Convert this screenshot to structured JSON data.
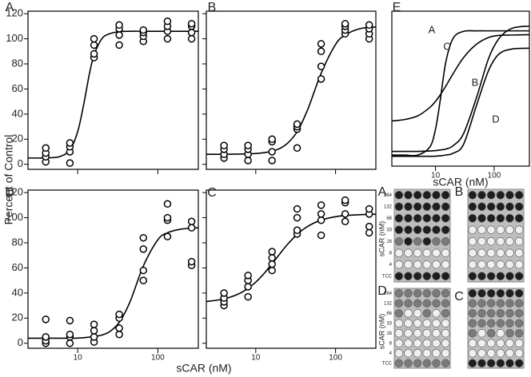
{
  "chart_data": [
    {
      "type": "scatter",
      "title": "A",
      "ylabel": "Percent of Control",
      "xscale": "log",
      "xlim": [
        2.4,
        320
      ],
      "ylim": [
        -4,
        122
      ],
      "xticks": [
        10,
        100
      ],
      "yticks": [
        0,
        20,
        40,
        60,
        80,
        100,
        120
      ],
      "xtick_labels": false,
      "ytick_labels": true,
      "x": [
        4,
        4,
        4,
        4,
        8,
        8,
        8,
        8,
        16,
        16,
        16,
        16,
        33,
        33,
        33,
        33,
        66,
        66,
        66,
        66,
        132,
        132,
        132,
        132,
        264,
        264,
        264,
        264
      ],
      "values": [
        2,
        6,
        9,
        13,
        1,
        10,
        14,
        17,
        85,
        88,
        95,
        100,
        95,
        103,
        108,
        111,
        98,
        102,
        105,
        107,
        100,
        106,
        110,
        114,
        100,
        105,
        110,
        112
      ],
      "fit": {
        "x": [
          2.4,
          4,
          6,
          8,
          10,
          12,
          14,
          16,
          20,
          25,
          33,
          45,
          66,
          100,
          132,
          200,
          320
        ],
        "values": [
          5,
          5.1,
          6.2,
          11.5,
          26,
          49,
          72,
          87,
          100,
          104,
          105.7,
          106,
          106,
          106,
          106,
          106,
          106
        ]
      }
    },
    {
      "type": "scatter",
      "title": "B",
      "xscale": "log",
      "xlim": [
        2.4,
        320
      ],
      "ylim": [
        -4,
        122
      ],
      "xticks": [
        10,
        100
      ],
      "yticks": [
        0,
        20,
        40,
        60,
        80,
        100,
        120
      ],
      "xtick_labels": false,
      "ytick_labels": false,
      "x": [
        4,
        4,
        4,
        4,
        8,
        8,
        8,
        8,
        16,
        16,
        16,
        16,
        33,
        33,
        33,
        33,
        66,
        66,
        66,
        66,
        132,
        132,
        132,
        132,
        264,
        264,
        264,
        264
      ],
      "values": [
        5,
        8,
        12,
        15,
        3,
        8,
        12,
        15,
        3,
        10,
        18,
        20,
        13,
        28,
        30,
        32,
        68,
        78,
        90,
        96,
        104,
        107,
        110,
        112,
        100,
        104,
        108,
        111
      ],
      "fit": {
        "x": [
          2.4,
          4,
          6,
          8,
          10,
          12,
          14,
          16,
          20,
          25,
          33,
          45,
          66,
          100,
          132,
          200,
          320
        ],
        "values": [
          8,
          8,
          8.1,
          8.3,
          8.6,
          9.1,
          9.7,
          10.5,
          12.6,
          16.8,
          26,
          44,
          72.6,
          95.5,
          103,
          108,
          109.5
        ]
      }
    },
    {
      "type": "line",
      "title": "E",
      "xlabel": "sCAR (nM)",
      "xscale": "log",
      "xlim": [
        1.8,
        400
      ],
      "ylim": [
        -4,
        122
      ],
      "xticks": [
        10,
        100
      ],
      "xtick_labels": true,
      "x": [
        1.8,
        3,
        5,
        8,
        10,
        12,
        15,
        20,
        30,
        50,
        80,
        120,
        200,
        400
      ],
      "series": [
        {
          "name": "A",
          "color": "#000000",
          "values": [
            5,
            5,
            5,
            11.5,
            26,
            49,
            80.7,
            100,
            105.6,
            106,
            106,
            106,
            106,
            106
          ]
        },
        {
          "name": "C",
          "color": "#000000",
          "values": [
            32.7,
            33.9,
            36.9,
            43.7,
            48.7,
            53.8,
            61.1,
            71.2,
            84.2,
            95.1,
            100.6,
            102.3,
            102.6,
            102.9
          ]
        },
        {
          "name": "B",
          "color": "#000000",
          "values": [
            8,
            8,
            8,
            8.3,
            8.6,
            9.1,
            9.9,
            12.6,
            22.3,
            51.6,
            83.2,
            99.5,
            108,
            109.9
          ]
        },
        {
          "name": "D",
          "color": "#000000",
          "values": [
            4,
            4,
            4,
            4,
            4.1,
            4.4,
            5,
            6.5,
            13.6,
            45.3,
            73.5,
            87,
            91.2,
            91.9
          ]
        }
      ]
    },
    {
      "type": "scatter",
      "title": "D",
      "xlabel": "sCAR (nM)",
      "xscale": "log",
      "xlim": [
        2.4,
        320
      ],
      "ylim": [
        -4,
        122
      ],
      "xticks": [
        10,
        100
      ],
      "yticks": [
        0,
        20,
        40,
        60,
        80,
        100,
        120
      ],
      "xtick_labels": true,
      "ytick_labels": true,
      "x": [
        4,
        4,
        4,
        4,
        8,
        8,
        8,
        8,
        16,
        16,
        16,
        16,
        33,
        33,
        33,
        33,
        66,
        66,
        66,
        66,
        132,
        132,
        132,
        132,
        264,
        264,
        264,
        264
      ],
      "values": [
        0,
        2,
        5,
        19,
        0,
        5,
        7,
        18,
        1,
        5,
        10,
        15,
        7,
        12,
        20,
        23,
        50,
        58,
        75,
        84,
        85,
        98,
        100,
        111,
        62,
        65,
        92,
        97
      ],
      "fit": {
        "x": [
          2.4,
          4,
          6,
          8,
          10,
          12,
          14,
          16,
          20,
          25,
          33,
          45,
          66,
          100,
          132,
          200,
          320
        ],
        "values": [
          4,
          4,
          4,
          4,
          4.1,
          4.4,
          4.9,
          5.4,
          6.5,
          9.2,
          16.6,
          33,
          61.6,
          82.4,
          88,
          91,
          92
        ]
      }
    },
    {
      "type": "scatter",
      "title": "C",
      "xscale": "log",
      "xlim": [
        2.4,
        320
      ],
      "ylim": [
        -4,
        122
      ],
      "xticks": [
        10,
        100
      ],
      "yticks": [
        0,
        20,
        40,
        60,
        80,
        100,
        120
      ],
      "xtick_labels": true,
      "ytick_labels": false,
      "x": [
        4,
        4,
        4,
        4,
        8,
        8,
        8,
        8,
        16,
        16,
        16,
        16,
        33,
        33,
        33,
        33,
        66,
        66,
        66,
        66,
        132,
        132,
        132,
        132,
        264,
        264,
        264,
        264
      ],
      "values": [
        30,
        33,
        36,
        40,
        37,
        45,
        50,
        54,
        58,
        63,
        68,
        73,
        87,
        90,
        100,
        107,
        86,
        98,
        103,
        110,
        97,
        103,
        112,
        114,
        88,
        93,
        103,
        107
      ],
      "fit": {
        "x": [
          2.4,
          4,
          6,
          8,
          10,
          12,
          14,
          16,
          20,
          25,
          33,
          45,
          66,
          100,
          132,
          200,
          320
        ],
        "values": [
          33.2,
          35.3,
          39.1,
          43.7,
          48.7,
          53.8,
          58.8,
          63.3,
          71.2,
          78.8,
          86.7,
          93.2,
          98.1,
          100.8,
          101.7,
          102.4,
          102.8
        ]
      }
    }
  ],
  "plates": {
    "panels": [
      "A",
      "B",
      "D",
      "C"
    ],
    "axis_label": "sCAR (nM)",
    "row_labels": [
      "264",
      "132",
      "66",
      "33",
      "16",
      "8",
      "4",
      "TCC"
    ]
  }
}
